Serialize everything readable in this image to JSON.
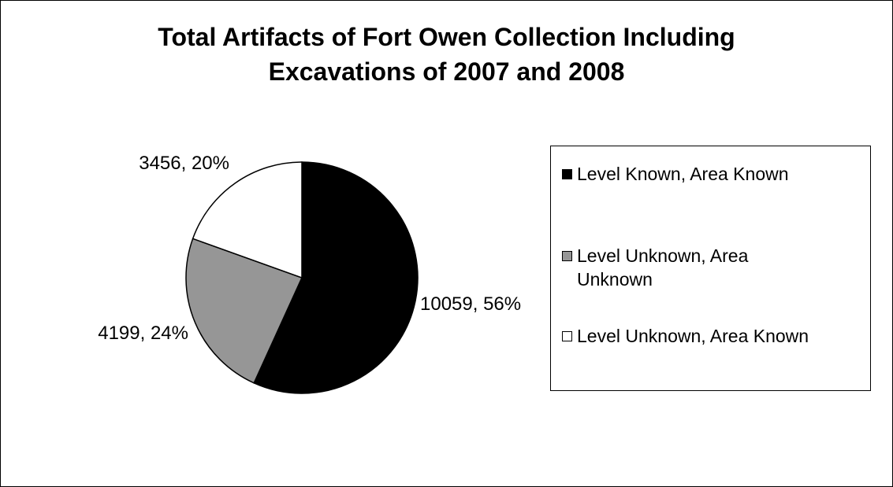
{
  "chart_data": {
    "type": "pie",
    "title": "Total Artifacts of Fort Owen Collection Including Excavations of 2007 and 2008",
    "title_lines": [
      "Total Artifacts of Fort Owen Collection Including",
      "Excavations of 2007 and 2008"
    ],
    "legend_position": "right",
    "slices": [
      {
        "name": "Level Known, Area Known",
        "value": 10059,
        "percent": 56,
        "label": "10059, 56%",
        "color": "#000000"
      },
      {
        "name": "Level Unknown, Area Unknown",
        "value": 4199,
        "percent": 24,
        "label": "4199, 24%",
        "color": "#969696"
      },
      {
        "name": "Level Unknown, Area Known",
        "value": 3456,
        "percent": 20,
        "label": "3456, 20%",
        "color": "#ffffff"
      }
    ]
  }
}
